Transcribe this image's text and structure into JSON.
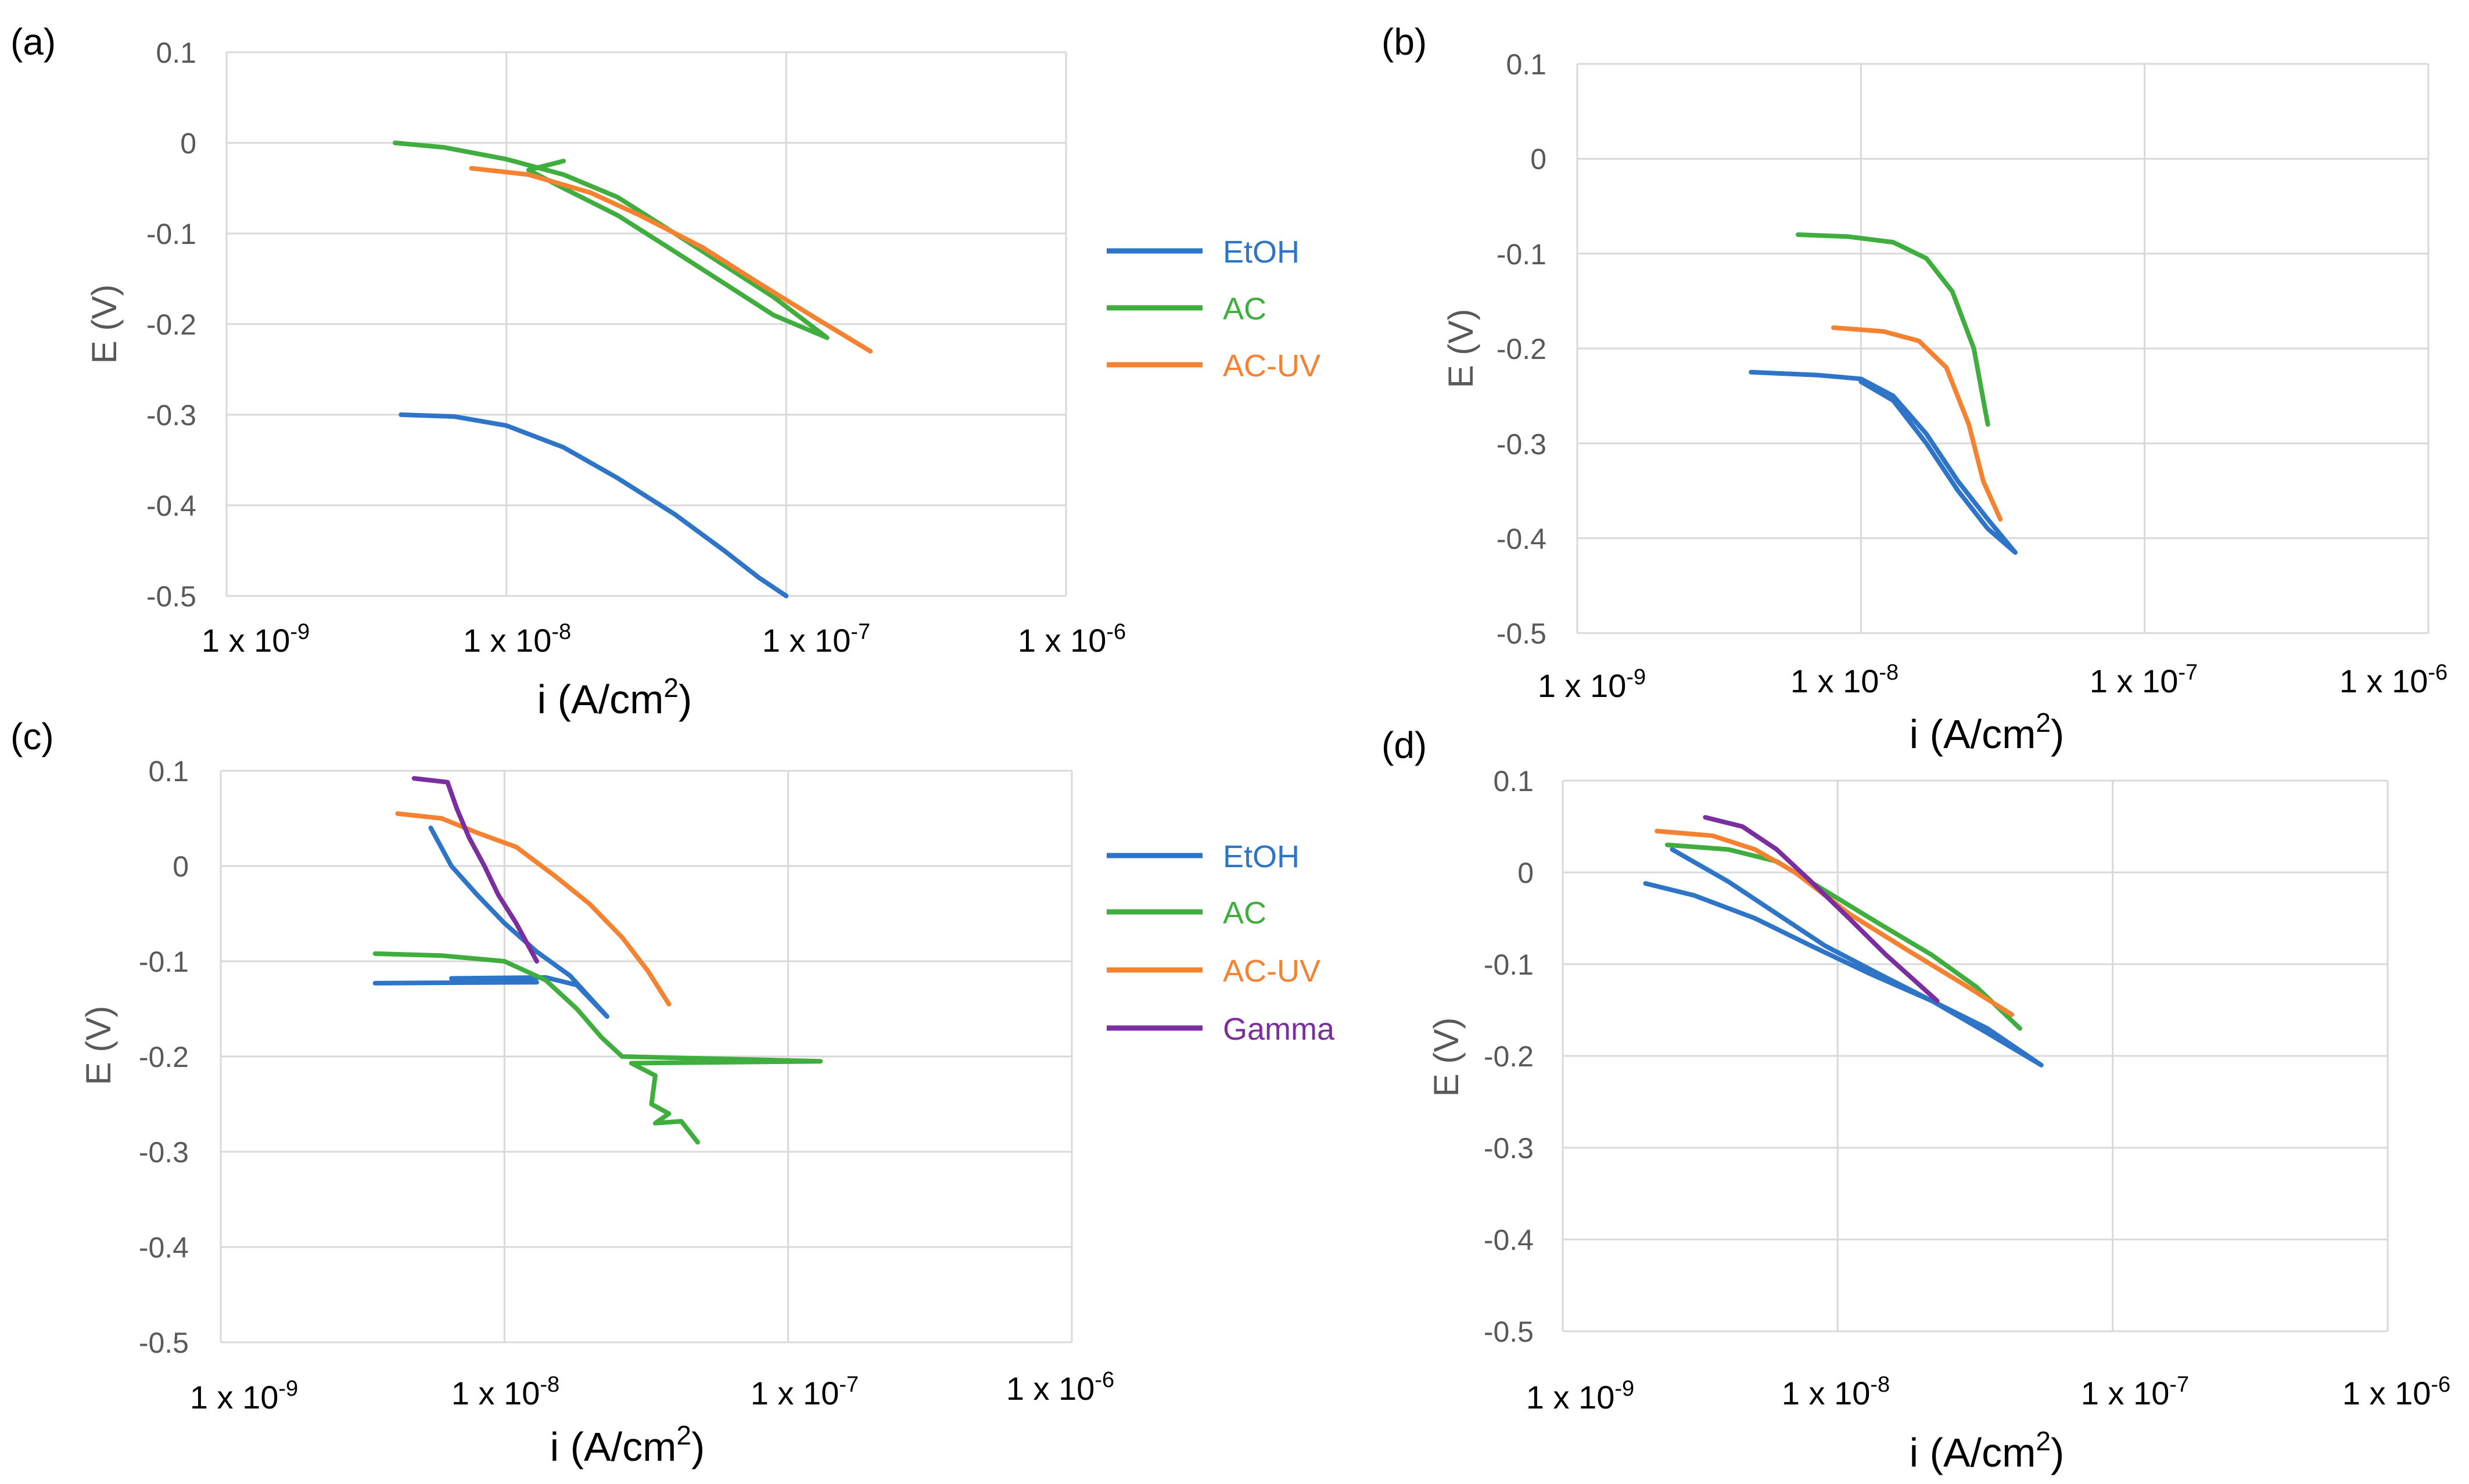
{
  "colors": {
    "EtOH": "#2e75c8",
    "AC": "#3fae3f",
    "AC-UV": "#f58231",
    "Gamma": "#7b2e9e"
  },
  "chart_data": [
    {
      "type": "line",
      "panel": "(a)",
      "xlabel_base": "i (A/cm",
      "xlabel_sup": "2",
      "xlabel_end": ")",
      "ylabel": "E (V)",
      "x_scale": "log",
      "xlim": [
        1e-09,
        1e-06
      ],
      "ylim": [
        -0.5,
        0.1
      ],
      "y_ticks": [
        "0.1",
        "0",
        "-0.1",
        "-0.2",
        "-0.3",
        "-0.4",
        "-0.5"
      ],
      "x_ticks": [
        {
          "base": "1 x 10",
          "exp": "-9"
        },
        {
          "base": "1 x 10",
          "exp": "-8"
        },
        {
          "base": "1 x 10",
          "exp": "-7"
        },
        {
          "base": "1 x 10",
          "exp": "-6"
        }
      ],
      "grid": true,
      "legend_position": "right",
      "legend": [
        "EtOH",
        "AC",
        "AC-UV"
      ],
      "series": [
        {
          "name": "EtOH",
          "points": [
            [
              4.2e-09,
              -0.3
            ],
            [
              6.5e-09,
              -0.302
            ],
            [
              1e-08,
              -0.312
            ],
            [
              1.6e-08,
              -0.336
            ],
            [
              2.5e-08,
              -0.37
            ],
            [
              4e-08,
              -0.41
            ],
            [
              6e-08,
              -0.45
            ],
            [
              8e-08,
              -0.48
            ],
            [
              1e-07,
              -0.5
            ]
          ]
        },
        {
          "name": "AC",
          "points": [
            [
              4e-09,
              0.0
            ],
            [
              6e-09,
              -0.005
            ],
            [
              1e-08,
              -0.018
            ],
            [
              1.6e-08,
              -0.035
            ],
            [
              2.5e-08,
              -0.06
            ],
            [
              4e-08,
              -0.1
            ],
            [
              6e-08,
              -0.135
            ],
            [
              9e-08,
              -0.17
            ],
            [
              1.4e-07,
              -0.215
            ],
            [
              9e-08,
              -0.19
            ],
            [
              6e-08,
              -0.155
            ],
            [
              4e-08,
              -0.12
            ],
            [
              2.5e-08,
              -0.08
            ],
            [
              1.6e-08,
              -0.05
            ],
            [
              1.2e-08,
              -0.03
            ],
            [
              1.6e-08,
              -0.02
            ]
          ]
        },
        {
          "name": "AC-UV",
          "points": [
            [
              7.5e-09,
              -0.028
            ],
            [
              1.2e-08,
              -0.035
            ],
            [
              2e-08,
              -0.055
            ],
            [
              3e-08,
              -0.08
            ],
            [
              5e-08,
              -0.115
            ],
            [
              8e-08,
              -0.155
            ],
            [
              1.3e-07,
              -0.195
            ],
            [
              2e-07,
              -0.23
            ]
          ]
        }
      ]
    },
    {
      "type": "line",
      "panel": "(b)",
      "xlabel_base": "i (A/cm",
      "xlabel_sup": "2",
      "xlabel_end": ")",
      "ylabel": "E (V)",
      "x_scale": "log",
      "xlim": [
        1e-09,
        1e-06
      ],
      "ylim": [
        -0.5,
        0.1
      ],
      "y_ticks": [
        "0.1",
        "0",
        "-0.1",
        "-0.2",
        "-0.3",
        "-0.4",
        "-0.5"
      ],
      "x_ticks": [
        {
          "base": "1 x 10",
          "exp": "-9"
        },
        {
          "base": "1 x 10",
          "exp": "-8"
        },
        {
          "base": "1 x 10",
          "exp": "-7"
        },
        {
          "base": "1 x 10",
          "exp": "-6"
        }
      ],
      "grid": true,
      "legend_position": "none",
      "legend": [],
      "series": [
        {
          "name": "EtOH",
          "points": [
            [
              4.1e-09,
              -0.225
            ],
            [
              7e-09,
              -0.228
            ],
            [
              1e-08,
              -0.232
            ],
            [
              1.3e-08,
              -0.25
            ],
            [
              1.7e-08,
              -0.29
            ],
            [
              2.2e-08,
              -0.34
            ],
            [
              2.8e-08,
              -0.38
            ],
            [
              3.5e-08,
              -0.415
            ],
            [
              2.8e-08,
              -0.39
            ],
            [
              2.2e-08,
              -0.35
            ],
            [
              1.7e-08,
              -0.3
            ],
            [
              1.3e-08,
              -0.255
            ],
            [
              1e-08,
              -0.235
            ]
          ]
        },
        {
          "name": "AC",
          "points": [
            [
              6e-09,
              -0.08
            ],
            [
              9e-09,
              -0.082
            ],
            [
              1.3e-08,
              -0.088
            ],
            [
              1.7e-08,
              -0.105
            ],
            [
              2.1e-08,
              -0.14
            ],
            [
              2.5e-08,
              -0.2
            ],
            [
              2.8e-08,
              -0.28
            ]
          ]
        },
        {
          "name": "AC-UV",
          "points": [
            [
              8e-09,
              -0.178
            ],
            [
              1.2e-08,
              -0.182
            ],
            [
              1.6e-08,
              -0.192
            ],
            [
              2e-08,
              -0.22
            ],
            [
              2.4e-08,
              -0.28
            ],
            [
              2.7e-08,
              -0.34
            ],
            [
              3.1e-08,
              -0.38
            ]
          ]
        }
      ]
    },
    {
      "type": "line",
      "panel": "(c)",
      "xlabel_base": "i (A/cm",
      "xlabel_sup": "2",
      "xlabel_end": ")",
      "ylabel": "E (V)",
      "x_scale": "log",
      "xlim": [
        1e-09,
        1e-06
      ],
      "ylim": [
        -0.5,
        0.1
      ],
      "y_ticks": [
        "0.1",
        "0",
        "-0.1",
        "-0.2",
        "-0.3",
        "-0.4",
        "-0.5"
      ],
      "x_ticks": [
        {
          "base": "1 x 10",
          "exp": "-9"
        },
        {
          "base": "1 x 10",
          "exp": "-8"
        },
        {
          "base": "1 x 10",
          "exp": "-7"
        },
        {
          "base": "1 x 10",
          "exp": "-6"
        }
      ],
      "grid": true,
      "legend_position": "right",
      "legend": [
        "EtOH",
        "AC",
        "AC-UV",
        "Gamma"
      ],
      "series": [
        {
          "name": "EtOH",
          "points": [
            [
              3.5e-09,
              -0.123
            ],
            [
              1.3e-08,
              -0.122
            ],
            [
              6.5e-09,
              -0.118
            ],
            [
              1.4e-08,
              -0.117
            ],
            [
              1.8e-08,
              -0.125
            ],
            [
              2.3e-08,
              -0.158
            ],
            [
              1.7e-08,
              -0.115
            ],
            [
              1.3e-08,
              -0.09
            ],
            [
              1e-08,
              -0.06
            ],
            [
              8e-09,
              -0.03
            ],
            [
              6.5e-09,
              0.0
            ],
            [
              5.5e-09,
              0.04
            ]
          ]
        },
        {
          "name": "AC",
          "points": [
            [
              3.5e-09,
              -0.092
            ],
            [
              6e-09,
              -0.094
            ],
            [
              1e-08,
              -0.1
            ],
            [
              1.4e-08,
              -0.12
            ],
            [
              1.8e-08,
              -0.15
            ],
            [
              2.2e-08,
              -0.18
            ],
            [
              2.6e-08,
              -0.2
            ],
            [
              1.3e-07,
              -0.205
            ],
            [
              2.8e-08,
              -0.207
            ],
            [
              3.4e-08,
              -0.22
            ],
            [
              3.3e-08,
              -0.25
            ],
            [
              3.8e-08,
              -0.26
            ],
            [
              3.4e-08,
              -0.27
            ],
            [
              4.2e-08,
              -0.268
            ],
            [
              4.8e-08,
              -0.29
            ]
          ]
        },
        {
          "name": "AC-UV",
          "points": [
            [
              4.2e-09,
              0.055
            ],
            [
              6e-09,
              0.05
            ],
            [
              8e-09,
              0.035
            ],
            [
              1.1e-08,
              0.02
            ],
            [
              1.5e-08,
              -0.01
            ],
            [
              2e-08,
              -0.04
            ],
            [
              2.6e-08,
              -0.075
            ],
            [
              3.2e-08,
              -0.11
            ],
            [
              3.8e-08,
              -0.145
            ]
          ]
        },
        {
          "name": "Gamma",
          "points": [
            [
              4.8e-09,
              0.092
            ],
            [
              6.3e-09,
              0.088
            ],
            [
              6.8e-09,
              0.06
            ],
            [
              7.5e-09,
              0.03
            ],
            [
              8.5e-09,
              0.0
            ],
            [
              9.5e-09,
              -0.03
            ],
            [
              1.1e-08,
              -0.06
            ],
            [
              1.3e-08,
              -0.1
            ]
          ]
        }
      ]
    },
    {
      "type": "line",
      "panel": "(d)",
      "xlabel_base": "i (A/cm",
      "xlabel_sup": "2",
      "xlabel_end": ")",
      "ylabel": "E (V)",
      "x_scale": "log",
      "xlim": [
        1e-09,
        1e-06
      ],
      "ylim": [
        -0.5,
        0.1
      ],
      "y_ticks": [
        "0.1",
        "0",
        "-0.1",
        "-0.2",
        "-0.3",
        "-0.4",
        "-0.5"
      ],
      "x_ticks": [
        {
          "base": "1 x 10",
          "exp": "-9"
        },
        {
          "base": "1 x 10",
          "exp": "-8"
        },
        {
          "base": "1 x 10",
          "exp": "-7"
        },
        {
          "base": "1 x 10",
          "exp": "-6"
        }
      ],
      "grid": true,
      "legend_position": "none",
      "legend": [],
      "series": [
        {
          "name": "EtOH",
          "points": [
            [
              2e-09,
              -0.012
            ],
            [
              3e-09,
              -0.025
            ],
            [
              5e-09,
              -0.05
            ],
            [
              8e-09,
              -0.08
            ],
            [
              1.3e-08,
              -0.11
            ],
            [
              2.2e-08,
              -0.14
            ],
            [
              3.5e-08,
              -0.17
            ],
            [
              5.5e-08,
              -0.21
            ],
            [
              3.5e-08,
              -0.175
            ],
            [
              2.2e-08,
              -0.14
            ],
            [
              1.4e-08,
              -0.11
            ],
            [
              9e-09,
              -0.08
            ],
            [
              6e-09,
              -0.045
            ],
            [
              4e-09,
              -0.01
            ],
            [
              2.5e-09,
              0.025
            ]
          ]
        },
        {
          "name": "AC",
          "points": [
            [
              2.4e-09,
              0.03
            ],
            [
              4e-09,
              0.025
            ],
            [
              6e-09,
              0.012
            ],
            [
              9e-09,
              -0.02
            ],
            [
              1.4e-08,
              -0.055
            ],
            [
              2.2e-08,
              -0.09
            ],
            [
              3.2e-08,
              -0.125
            ],
            [
              4.6e-08,
              -0.17
            ]
          ]
        },
        {
          "name": "AC-UV",
          "points": [
            [
              2.2e-09,
              0.045
            ],
            [
              3.5e-09,
              0.04
            ],
            [
              5e-09,
              0.025
            ],
            [
              7e-09,
              0.0
            ],
            [
              1.1e-08,
              -0.045
            ],
            [
              1.8e-08,
              -0.085
            ],
            [
              2.8e-08,
              -0.12
            ],
            [
              4.3e-08,
              -0.155
            ]
          ]
        },
        {
          "name": "Gamma",
          "points": [
            [
              3.3e-09,
              0.06
            ],
            [
              4.5e-09,
              0.05
            ],
            [
              6e-09,
              0.025
            ],
            [
              8e-09,
              -0.01
            ],
            [
              1.1e-08,
              -0.05
            ],
            [
              1.5e-08,
              -0.09
            ],
            [
              2.3e-08,
              -0.14
            ]
          ]
        }
      ]
    }
  ]
}
